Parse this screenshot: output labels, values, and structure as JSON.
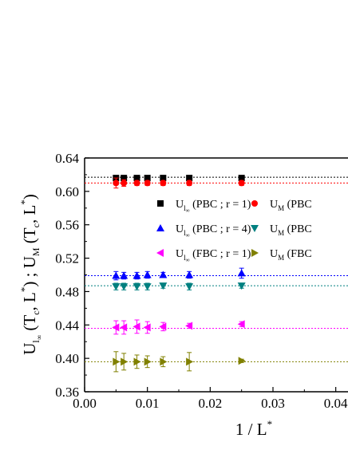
{
  "chart_data": {
    "type": "scatter",
    "xlabel": "1 / L*",
    "ylabel": "U_l∞ (T_c*, L*) ; U_M (T_c*, L*)",
    "xlim": [
      0.0,
      0.045
    ],
    "ylim": [
      0.36,
      0.64
    ],
    "x_ticks": [
      "0.00",
      "0.01",
      "0.02",
      "0.03",
      "0.04"
    ],
    "y_ticks": [
      "0.36",
      "0.40",
      "0.44",
      "0.48",
      "0.52",
      "0.56",
      "0.60",
      "0.64"
    ],
    "x": [
      0.005,
      0.00625,
      0.00833,
      0.01,
      0.0125,
      0.01667,
      0.025
    ],
    "series": [
      {
        "name": "U_l∞ (PBC ; r = 1)",
        "color": "#000000",
        "marker": "square",
        "values": [
          0.616,
          0.616,
          0.616,
          0.616,
          0.616,
          0.616,
          0.616
        ],
        "errors": [
          0.003,
          0.003,
          0.003,
          0.003,
          0.003,
          0.003,
          0.003
        ],
        "fit_line": 0.617
      },
      {
        "name": "U_M (PBC",
        "color": "#ff0000",
        "marker": "circle",
        "values": [
          0.61,
          0.61,
          0.61,
          0.61,
          0.61,
          0.61,
          0.61
        ],
        "errors": [
          0.006,
          0.004,
          0.003,
          0.003,
          0.003,
          0.003,
          0.003
        ],
        "fit_line": 0.61
      },
      {
        "name": "U_l∞ (PBC ; r = 4)",
        "color": "#0000ff",
        "marker": "triangle-up",
        "values": [
          0.499,
          0.499,
          0.499,
          0.5,
          0.5,
          0.5,
          0.502
        ],
        "errors": [
          0.005,
          0.004,
          0.004,
          0.004,
          0.003,
          0.004,
          0.006
        ],
        "fit_line": 0.499
      },
      {
        "name": "U_M (PBC",
        "color": "#008080",
        "marker": "triangle-down",
        "values": [
          0.486,
          0.486,
          0.486,
          0.486,
          0.487,
          0.486,
          0.487
        ],
        "errors": [
          0.004,
          0.004,
          0.004,
          0.004,
          0.003,
          0.004,
          0.003
        ],
        "fit_line": 0.487
      },
      {
        "name": "U_l∞ (FBC ; r = 1)",
        "color": "#ff00ff",
        "marker": "triangle-left",
        "values": [
          0.437,
          0.437,
          0.438,
          0.437,
          0.438,
          0.439,
          0.441
        ],
        "errors": [
          0.008,
          0.008,
          0.008,
          0.007,
          0.005,
          0.003,
          0.003
        ],
        "fit_line": 0.436
      },
      {
        "name": "U_M (FBC",
        "color": "#808000",
        "marker": "triangle-right",
        "values": [
          0.396,
          0.396,
          0.396,
          0.396,
          0.396,
          0.396,
          0.397
        ],
        "errors": [
          0.012,
          0.01,
          0.008,
          0.007,
          0.006,
          0.011,
          0.002
        ],
        "fit_line": 0.396
      }
    ],
    "grid": false,
    "legend": "upper right, two columns",
    "colors": {
      "bracket": "#000000",
      "fit_line_style": "dotted"
    }
  }
}
